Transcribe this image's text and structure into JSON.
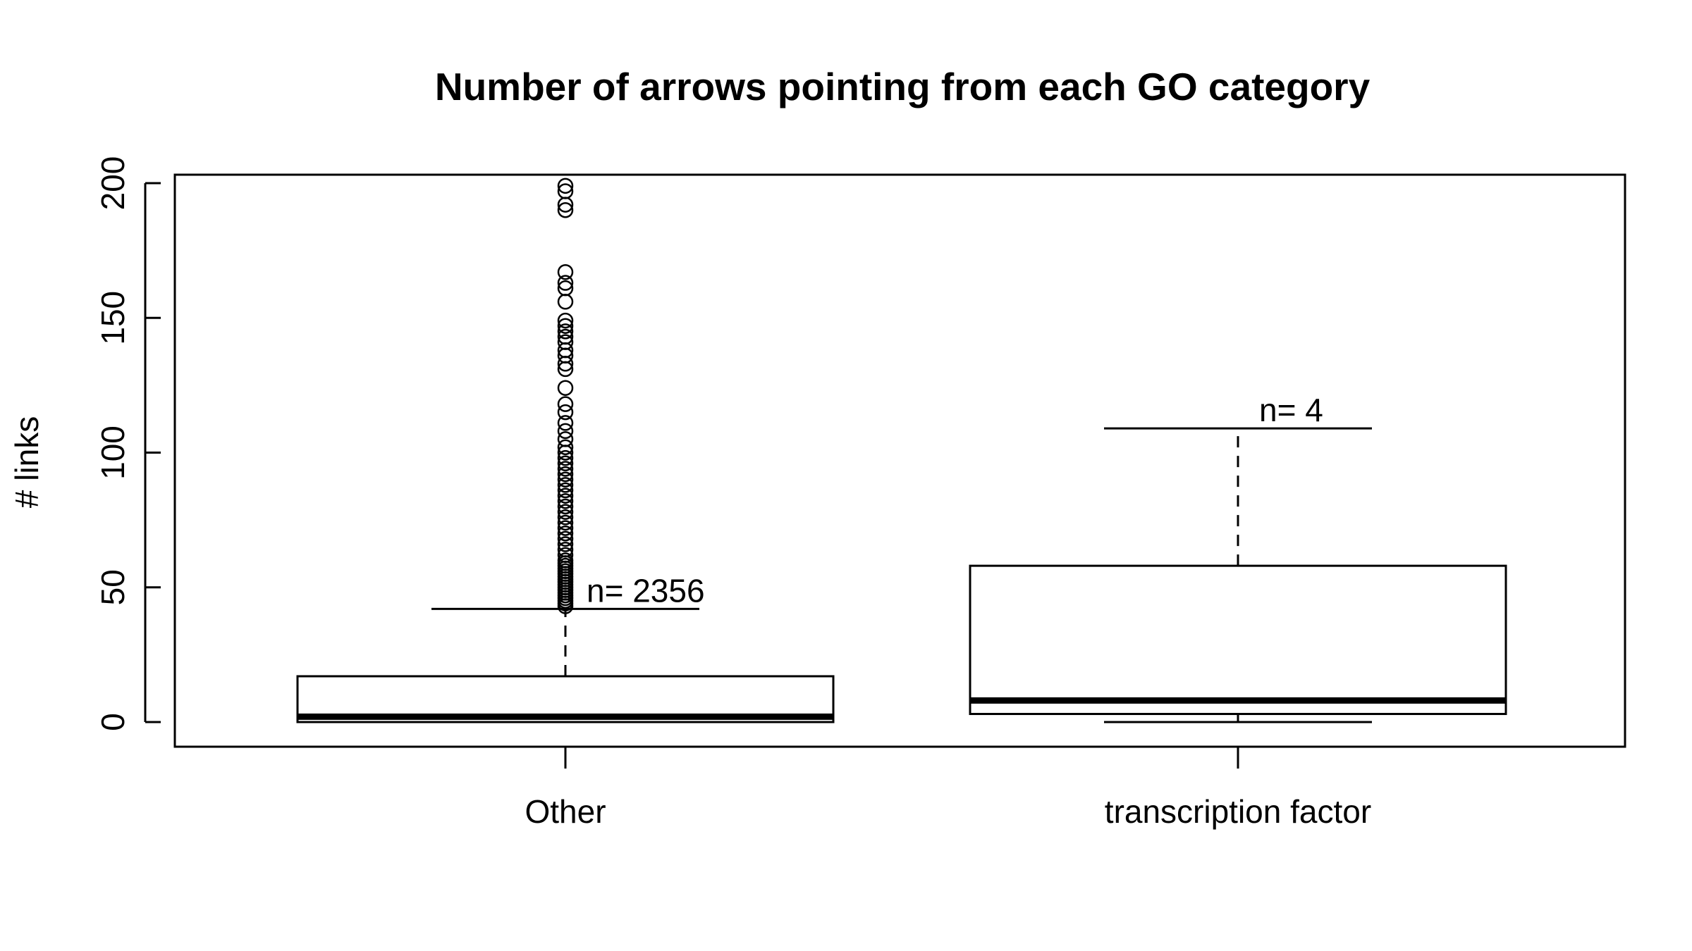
{
  "chart_data": {
    "type": "box",
    "title": "Number of arrows pointing from each GO category",
    "xlabel": "",
    "ylabel": "# links",
    "ylim": [
      -9,
      203
    ],
    "yticks": [
      0,
      50,
      100,
      150,
      200
    ],
    "categories": [
      "Other",
      "transcription factor"
    ],
    "boxes": [
      {
        "category": "Other",
        "whisker_low": 0,
        "q1": 0,
        "median": 2,
        "q3": 17,
        "whisker_high": 42,
        "n_label": "n= 2356",
        "outliers": [
          43,
          44,
          45,
          46,
          47,
          48,
          49,
          50,
          51,
          52,
          53,
          54,
          55,
          56,
          57,
          58,
          59,
          60,
          62,
          64,
          66,
          68,
          70,
          72,
          74,
          76,
          78,
          80,
          82,
          84,
          86,
          88,
          90,
          92,
          94,
          96,
          98,
          100,
          102,
          105,
          108,
          111,
          115,
          118,
          124,
          131,
          133,
          136,
          138,
          141,
          143,
          145,
          147,
          149,
          156,
          161,
          163,
          167,
          190,
          192,
          197,
          199
        ]
      },
      {
        "category": "transcription factor",
        "whisker_low": 0,
        "q1": 3,
        "median": 8,
        "q3": 58,
        "whisker_high": 109,
        "n_label": "n= 4",
        "outliers": []
      }
    ]
  }
}
